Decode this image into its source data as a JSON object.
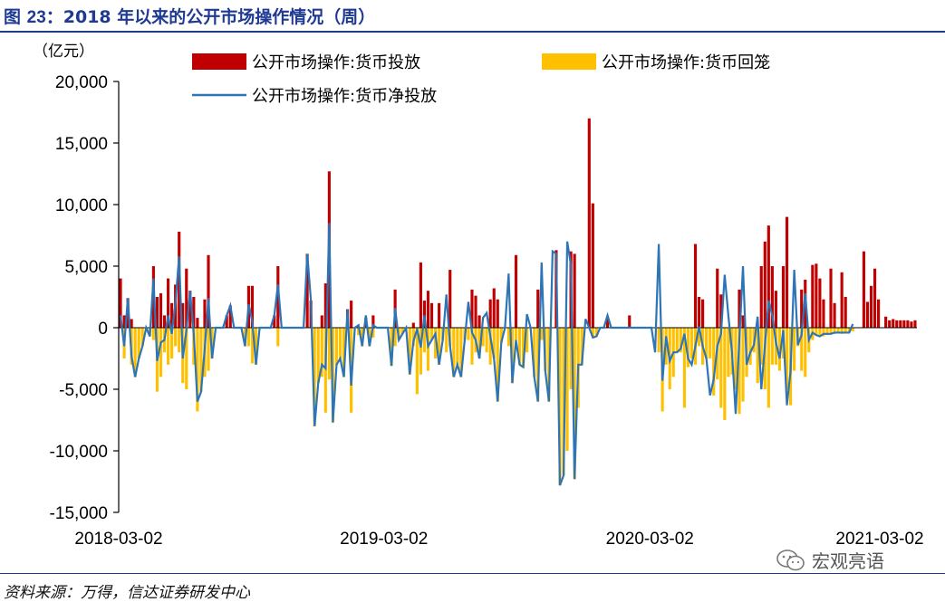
{
  "figure": {
    "title_prefix": "图 ",
    "title_number": "23",
    "title_text": "：2018 年以来的公开市场操作情况（周）"
  },
  "source": "资料来源：万得，信达证券研发中心",
  "watermark": {
    "text": "宏观亮语",
    "icon": "wechat-icon"
  },
  "colors": {
    "injection": "#c00000",
    "withdrawal": "#ffc000",
    "net": "#2e75b6",
    "title": "#1f3a93"
  },
  "chart_data": {
    "type": "bar",
    "unit": "（亿元）",
    "ylim": [
      -15000,
      20000
    ],
    "yticks": [
      20000,
      15000,
      10000,
      5000,
      0,
      -5000,
      -10000,
      -15000
    ],
    "ytick_labels": [
      "20,000",
      "15,000",
      "10,000",
      "5,000",
      "0",
      "-5,000",
      "-10,000",
      "-15,000"
    ],
    "xticks": [
      "2018-03-02",
      "2019-03-02",
      "2020-03-02",
      "2021-03-02"
    ],
    "x_start": "2018-03-02",
    "x_end": "2021-03-02",
    "grid": false,
    "legend": [
      {
        "name": "公开市场操作:货币投放",
        "kind": "bar",
        "series": "injection"
      },
      {
        "name": "公开市场操作:货币回笼",
        "kind": "bar",
        "series": "withdrawal"
      },
      {
        "name": "公开市场操作:货币净投放",
        "kind": "line",
        "series": "net"
      }
    ],
    "series": [
      {
        "name": "公开市场操作:货币投放",
        "key": "injection",
        "values": [
          4000,
          1000,
          2400,
          700,
          0,
          0,
          0,
          0,
          0,
          5000,
          2500,
          2800,
          1000,
          4000,
          2000,
          3500,
          7800,
          2000,
          4800,
          3000,
          2500,
          800,
          0,
          2300,
          5900,
          0,
          0,
          0,
          0,
          1000,
          1800,
          0,
          0,
          0,
          0,
          3400,
          3400,
          0,
          0,
          0,
          0,
          0,
          1000,
          5000,
          0,
          0,
          0,
          0,
          0,
          0,
          0,
          6000,
          2200,
          0,
          0,
          1000,
          3600,
          12700,
          0,
          0,
          0,
          0,
          1500,
          2200,
          0,
          0,
          0,
          800,
          0,
          1000,
          0,
          0,
          0,
          0,
          0,
          3100,
          0,
          0,
          0,
          0,
          400,
          0,
          5300,
          2200,
          3000,
          2000,
          0,
          2000,
          0,
          0,
          4700,
          0,
          0,
          0,
          0,
          0,
          3100,
          2600,
          1000,
          0,
          0,
          2300,
          3200,
          2300,
          0,
          0,
          0,
          0,
          5900,
          0,
          0,
          0,
          0,
          0,
          3100,
          0,
          0,
          0,
          0,
          6300,
          0,
          0,
          0,
          6200,
          6000,
          0,
          0,
          0,
          17000,
          10100,
          0,
          0,
          0,
          700,
          0,
          0,
          0,
          0,
          0,
          1000,
          0,
          0,
          0,
          0,
          0,
          0,
          0,
          0,
          0,
          0,
          0,
          0,
          0,
          0,
          0,
          0,
          0,
          6800,
          2500,
          2300,
          0,
          0,
          0,
          4800,
          2700,
          0,
          0,
          0,
          0,
          3100,
          1000,
          0,
          0,
          0,
          0,
          5000,
          7000,
          8300,
          5000,
          3000,
          0,
          5000,
          9000,
          0,
          0,
          0,
          3100,
          3900,
          0,
          5100,
          5200,
          4000,
          2300,
          0,
          4800,
          2000,
          0,
          4500,
          2500,
          0,
          0,
          0,
          0,
          6200,
          2100,
          3400,
          4800,
          2300,
          0,
          900,
          600,
          700,
          600,
          600,
          600,
          600,
          500,
          600
        ]
      },
      {
        "name": "公开市场操作:货币回笼",
        "key": "withdrawal",
        "values": [
          0,
          -2500,
          0,
          -3000,
          -4000,
          -2500,
          -1500,
          0,
          -700,
          -1000,
          -5200,
          -4000,
          -2000,
          -3000,
          -2500,
          -1500,
          -2000,
          -4500,
          -5000,
          0,
          -3000,
          -6800,
          -5200,
          -4000,
          -3500,
          -2500,
          0,
          0,
          0,
          0,
          0,
          0,
          0,
          0,
          -1500,
          -1500,
          -2900,
          -3000,
          0,
          0,
          0,
          0,
          0,
          -1500,
          0,
          0,
          0,
          0,
          0,
          0,
          0,
          0,
          0,
          -8000,
          -4500,
          -4000,
          -6900,
          -4200,
          -7700,
          -3000,
          -2500,
          -4000,
          0,
          -6900,
          0,
          -600,
          -1500,
          0,
          -1500,
          -800,
          0,
          0,
          0,
          0,
          -3100,
          -1500,
          -1000,
          -500,
          0,
          -3800,
          -1500,
          -5400,
          -3800,
          -2000,
          -3500,
          -1000,
          -2500,
          -3000,
          -1000,
          -2000,
          -1500,
          -4000,
          -3000,
          -4000,
          -1000,
          -1000,
          -3000,
          -2000,
          -2500,
          -1500,
          -2000,
          -3000,
          -2500,
          -6000,
          -1200,
          0,
          -1500,
          -4500,
          -1000,
          -3000,
          -3200,
          -2000,
          0,
          -4000,
          -6000,
          -1000,
          -3500,
          -6000,
          0,
          0,
          -12800,
          -12000,
          -10000,
          -5000,
          -12300,
          -6500,
          -3000,
          0,
          0,
          -800,
          -700,
          0,
          0,
          0,
          0,
          0,
          0,
          0,
          0,
          0,
          0,
          0,
          0,
          0,
          0,
          0,
          0,
          -2000,
          -6800,
          -3000,
          -5000,
          -4000,
          -2000,
          -2000,
          -6500,
          -3200,
          -2500,
          -3000,
          -1500,
          -3000,
          -2500,
          -2500,
          -5500,
          -4200,
          -6500,
          -7500,
          -4000,
          -3800,
          -5000,
          -7000,
          -6000,
          -4000,
          -3000,
          -2000,
          -4500,
          -3000,
          -5000,
          -6500,
          -3000,
          -3000,
          -3500,
          -2500,
          -5000,
          -6300,
          -3500,
          -1500,
          -3500,
          -4000,
          -2000,
          -1000,
          -600,
          -600,
          -700,
          -600,
          -500,
          -500,
          -400,
          -500,
          -400,
          -400,
          -300
        ]
      },
      {
        "name": "公开市场操作:货币净投放",
        "key": "net",
        "values": [
          1000,
          -1500,
          2400,
          -2300,
          -4000,
          -2500,
          -1500,
          0,
          -700,
          4000,
          -2700,
          -1200,
          -1000,
          1000,
          -500,
          2000,
          5800,
          -2500,
          -200,
          3000,
          -500,
          -6000,
          -5200,
          -1700,
          2400,
          -2500,
          0,
          0,
          0,
          1000,
          1800,
          0,
          0,
          0,
          -1500,
          1900,
          500,
          -3000,
          0,
          0,
          0,
          0,
          1000,
          3500,
          0,
          0,
          0,
          0,
          0,
          0,
          0,
          6000,
          2200,
          -8000,
          -4500,
          -3000,
          -3300,
          8500,
          -7700,
          -3000,
          -2500,
          -4000,
          1500,
          -4700,
          0,
          200,
          -1500,
          1000,
          -1500,
          200,
          0,
          0,
          0,
          0,
          -3100,
          1600,
          -1000,
          -500,
          0,
          -3800,
          -1100,
          -100,
          -1600,
          1000,
          -1500,
          -1000,
          -500,
          -3000,
          -1000,
          2700,
          -1500,
          -4000,
          -3000,
          -4000,
          -1000,
          2100,
          -400,
          -1000,
          -2500,
          800,
          1200,
          -700,
          -2500,
          -6000,
          -1200,
          0,
          4400,
          -4500,
          -1000,
          -3000,
          -3200,
          1100,
          0,
          -4000,
          -6000,
          5300,
          -3500,
          -6000,
          6200,
          6000,
          -12800,
          -12000,
          7000,
          5100,
          -12300,
          -3000,
          -3000,
          700,
          0,
          -800,
          -700,
          0,
          0,
          1000,
          0,
          0,
          0,
          0,
          0,
          0,
          0,
          0,
          0,
          0,
          0,
          0,
          -2000,
          6800,
          -4300,
          -700,
          -2700,
          -2000,
          -2000,
          -1700,
          -500,
          -2500,
          -3000,
          -1500,
          100,
          -1500,
          -2500,
          -5500,
          -4200,
          -1500,
          -500,
          4300,
          1000,
          -2000,
          -7000,
          -1000,
          5000,
          -3000,
          -2000,
          -1400,
          900,
          -5000,
          -1400,
          2200,
          1000,
          -1200,
          -2500,
          -200,
          -6300,
          -3500,
          4700,
          -1400,
          -600,
          2800,
          -1000,
          -400,
          -600,
          -700,
          -500,
          -500,
          -500,
          -400,
          -400,
          -400,
          -400,
          -400,
          300
        ]
      }
    ]
  }
}
